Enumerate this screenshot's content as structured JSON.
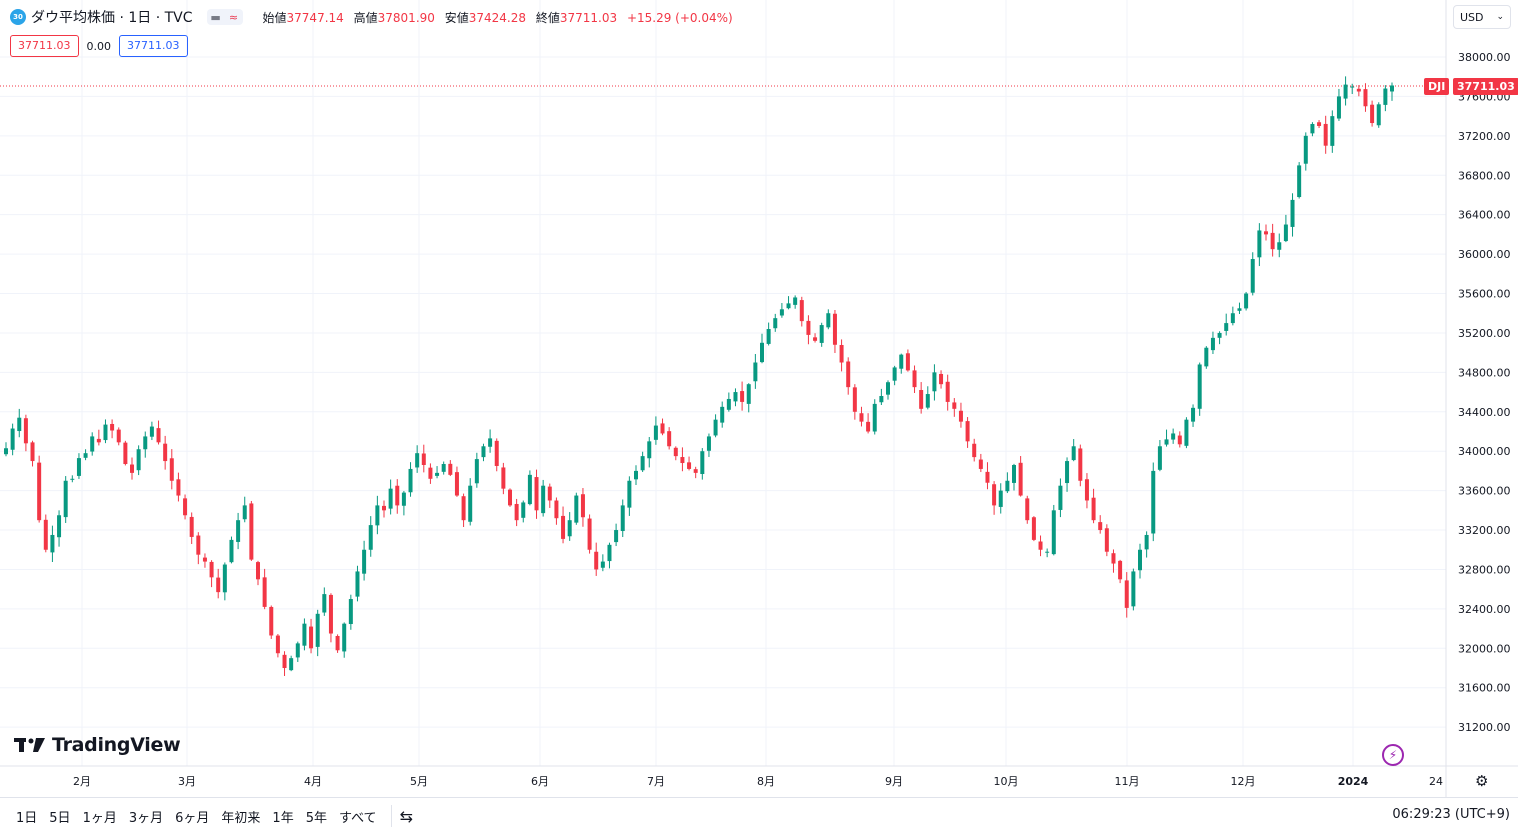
{
  "header": {
    "symbol_badge": "30",
    "title": "ダウ平均株価 · 1日 · TVC",
    "ohlc": [
      {
        "label": "始値",
        "value": "37747.14"
      },
      {
        "label": "高値",
        "value": "37801.90"
      },
      {
        "label": "安値",
        "value": "37424.28"
      },
      {
        "label": "終値",
        "value": "37711.03"
      }
    ],
    "change": "+15.29 (+0.04%)",
    "sell_price": "37711.03",
    "spread": "0.00",
    "buy_price": "37711.03"
  },
  "currency": "USD",
  "price_tag": {
    "symbol": "DJI",
    "value": "37711.03"
  },
  "logo_text": "TradingView",
  "colors": {
    "up": "#089981",
    "down": "#f23645",
    "grid": "#f0f3fa",
    "accent": "#2962ff"
  },
  "chart_data": {
    "type": "candlestick",
    "y_axis_labels": [
      "38000.00",
      "37600.00",
      "37200.00",
      "36800.00",
      "36400.00",
      "36000.00",
      "35600.00",
      "35200.00",
      "34800.00",
      "34400.00",
      "34000.00",
      "33600.00",
      "33200.00",
      "32800.00",
      "32400.00",
      "32000.00",
      "31600.00",
      "31200.00"
    ],
    "x_axis_labels": [
      "2月",
      "3月",
      "4月",
      "5月",
      "6月",
      "7月",
      "8月",
      "9月",
      "10月",
      "11月",
      "12月",
      "2024",
      "24"
    ],
    "last_close": 37711.03,
    "ylim": [
      31000,
      38150
    ],
    "grid": true,
    "closes": [
      34030,
      34230,
      34340,
      34080,
      33900,
      33300,
      33000,
      33150,
      33350,
      33700,
      33720,
      33930,
      33980,
      34150,
      34090,
      34270,
      34210,
      34090,
      33870,
      33780,
      34020,
      34150,
      34250,
      34090,
      33900,
      33700,
      33550,
      33350,
      33130,
      32950,
      32880,
      32720,
      32570,
      32850,
      33100,
      33300,
      33450,
      32900,
      32700,
      32420,
      32130,
      31950,
      31800,
      31900,
      32050,
      32250,
      32000,
      32350,
      32550,
      32150,
      31980,
      32250,
      32500,
      32780,
      33000,
      33250,
      33450,
      33400,
      33620,
      33450,
      33580,
      33820,
      33980,
      33860,
      33720,
      33780,
      33870,
      33760,
      33550,
      33300,
      33650,
      33920,
      34050,
      34130,
      33850,
      33620,
      33450,
      33300,
      33480,
      33760,
      33400,
      33650,
      33500,
      33320,
      33110,
      33300,
      33550,
      33330,
      33000,
      32800,
      32880,
      33050,
      33200,
      33450,
      33700,
      33800,
      33950,
      34100,
      34260,
      34180,
      34050,
      33950,
      33880,
      33820,
      33780,
      34000,
      34150,
      34320,
      34450,
      34530,
      34600,
      34500,
      34680,
      34900,
      35100,
      35240,
      35350,
      35440,
      35500,
      35560,
      35320,
      35180,
      35120,
      35280,
      35400,
      35080,
      34900,
      34650,
      34400,
      34300,
      34200,
      34480,
      34560,
      34700,
      34850,
      34980,
      34820,
      34650,
      34430,
      34580,
      34800,
      34680,
      34500,
      34430,
      34300,
      34100,
      33940,
      33820,
      33680,
      33450,
      33600,
      33700,
      33860,
      33550,
      33300,
      33100,
      33000,
      32980,
      33400,
      33650,
      33900,
      34050,
      33700,
      33500,
      33300,
      33200,
      32980,
      32860,
      32700,
      32410,
      32780,
      33000,
      33150,
      33800,
      34050,
      34120,
      34180,
      34070,
      34320,
      34440,
      34880,
      35050,
      35150,
      35200,
      35300,
      35400,
      35450,
      35600,
      35950,
      36240,
      36200,
      36050,
      36120,
      36300,
      36550,
      36900,
      37200,
      37320,
      37300,
      37100,
      37400,
      37600,
      37720,
      37700,
      37650,
      37500,
      37330,
      37520,
      37680,
      37711
    ]
  }
}
